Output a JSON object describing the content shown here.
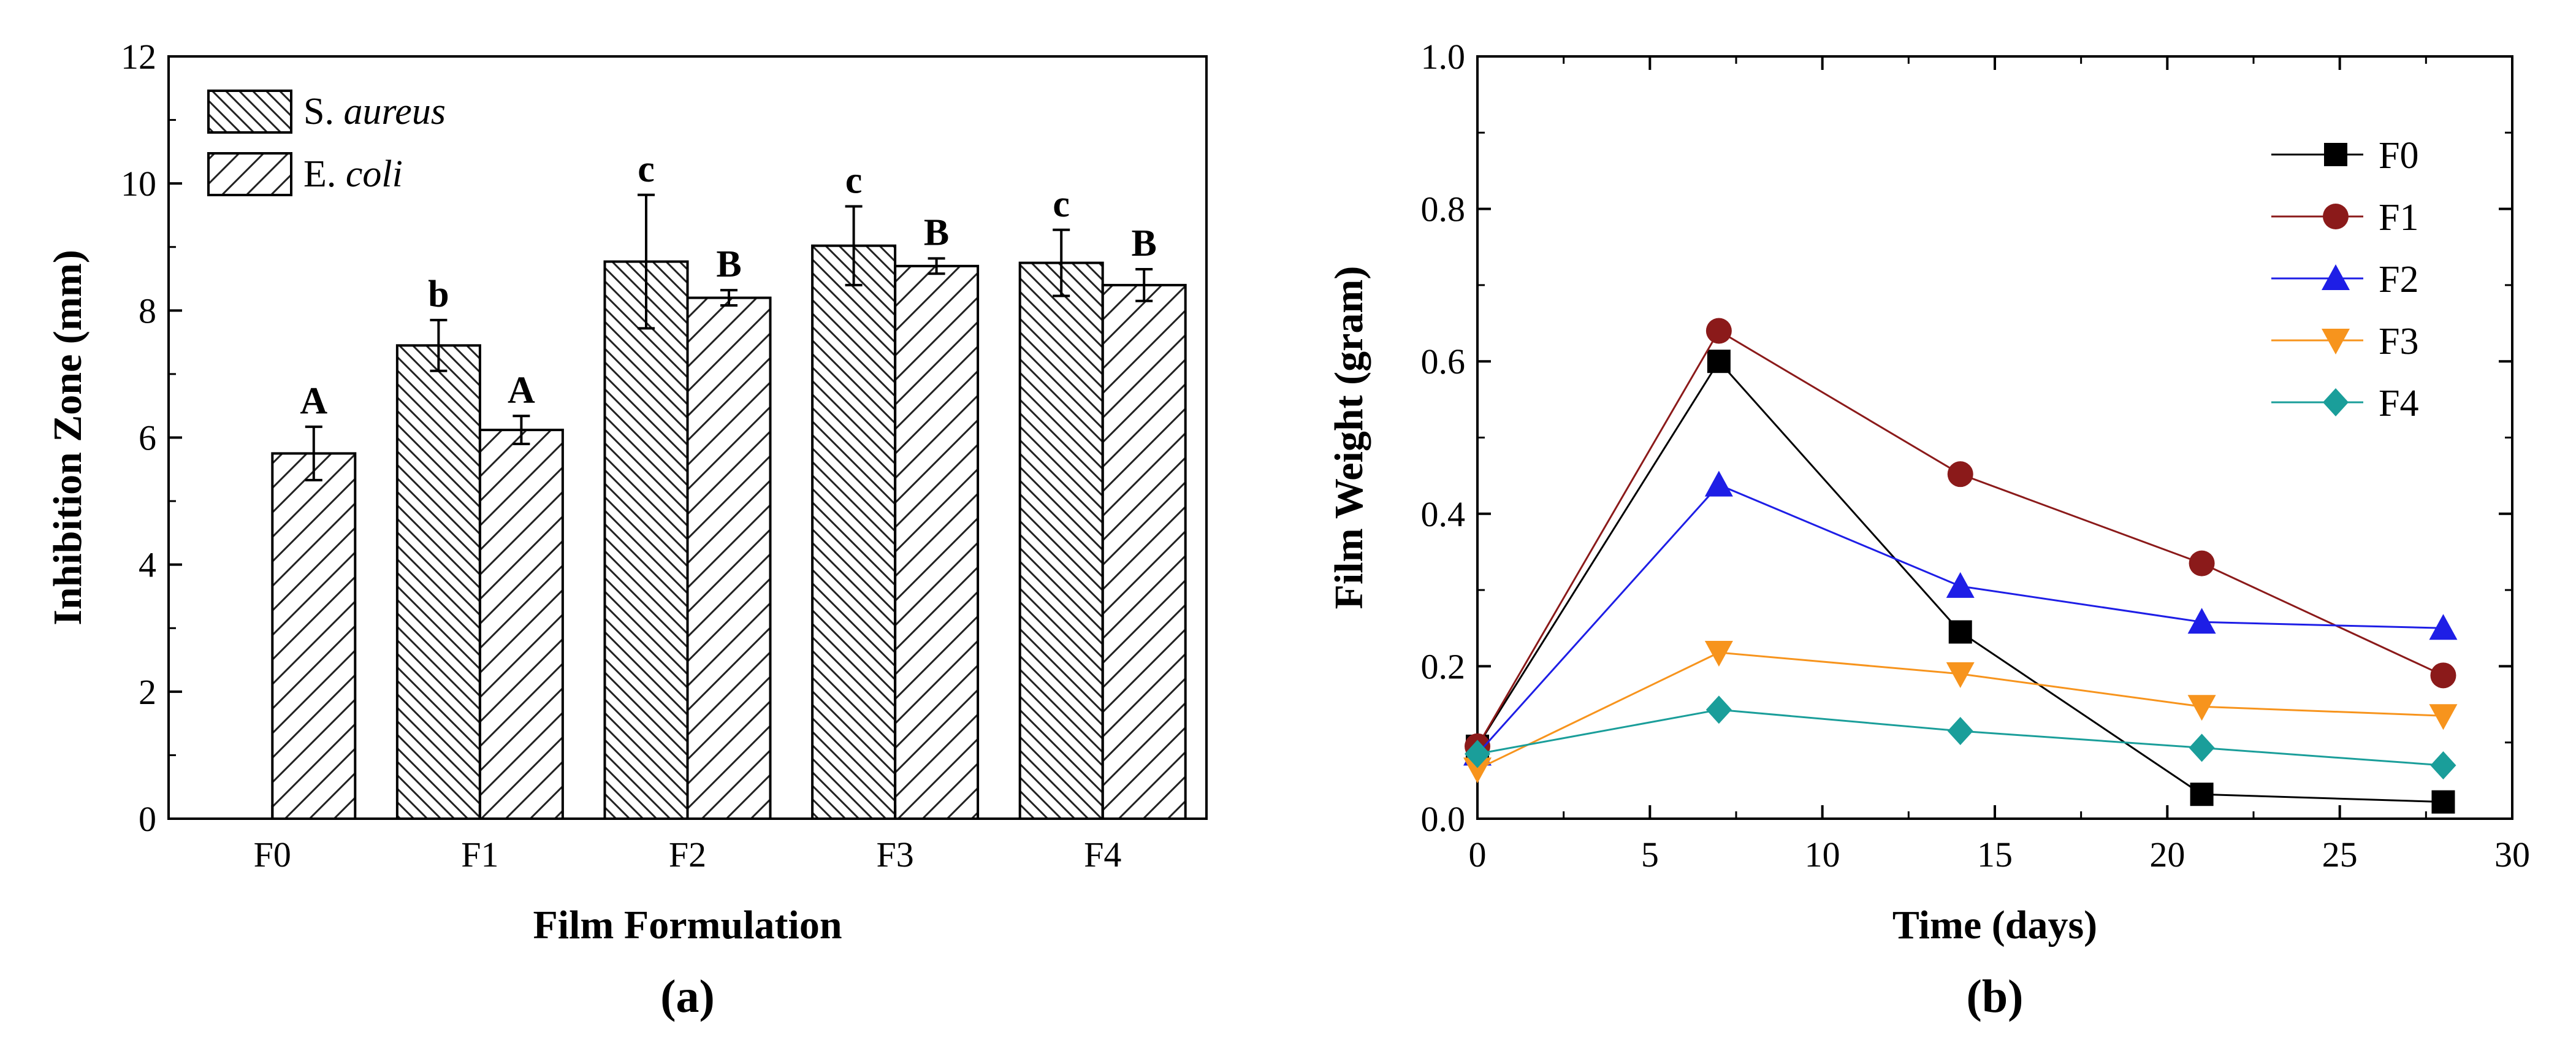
{
  "chart_data": [
    {
      "type": "bar",
      "panel_label": "(a)",
      "xlabel": "Film Formulation",
      "ylabel": "Inhibition Zone (mm)",
      "ylim": [
        0,
        12
      ],
      "yticks": [
        0,
        2,
        4,
        6,
        8,
        10,
        12
      ],
      "categories": [
        "F0",
        "F1",
        "F2",
        "F3",
        "F4"
      ],
      "series": [
        {
          "name": [
            "S. ",
            "aureus"
          ],
          "values": [
            null,
            7.45,
            8.77,
            9.02,
            8.75
          ],
          "errors": [
            null,
            0.4,
            1.05,
            0.62,
            0.52
          ],
          "letters": [
            null,
            "b",
            "c",
            "c",
            "c"
          ],
          "hatch": "backslash"
        },
        {
          "name": [
            "E. ",
            "coli"
          ],
          "values": [
            5.75,
            6.12,
            8.2,
            8.7,
            8.4
          ],
          "errors": [
            0.42,
            0.22,
            0.12,
            0.12,
            0.25
          ],
          "letters": [
            "A",
            "A",
            "B",
            "B",
            "B"
          ],
          "hatch": "slash"
        }
      ],
      "legend": "top-left"
    },
    {
      "type": "line",
      "panel_label": "(b)",
      "xlabel": "Time (days)",
      "ylabel": "Film Weight (gram)",
      "xlim": [
        0,
        30
      ],
      "ylim": [
        0,
        1.0
      ],
      "xticks": [
        0,
        5,
        10,
        15,
        20,
        25,
        30
      ],
      "yticks": [
        "0.0",
        "0.2",
        "0.4",
        "0.6",
        "0.8",
        "1.0"
      ],
      "x": [
        0,
        7,
        14,
        21,
        28
      ],
      "series": [
        {
          "name": "F0",
          "values": [
            0.095,
            0.6,
            0.245,
            0.032,
            0.022
          ],
          "color": "#000000",
          "marker": "square"
        },
        {
          "name": "F1",
          "values": [
            0.095,
            0.64,
            0.452,
            0.335,
            0.188
          ],
          "color": "#8b1a1a",
          "marker": "circle"
        },
        {
          "name": "F2",
          "values": [
            0.085,
            0.438,
            0.305,
            0.258,
            0.25
          ],
          "color": "#1e1ee6",
          "marker": "triangle-up"
        },
        {
          "name": "F3",
          "values": [
            0.065,
            0.218,
            0.19,
            0.147,
            0.135
          ],
          "color": "#f7941d",
          "marker": "triangle-down"
        },
        {
          "name": "F4",
          "values": [
            0.085,
            0.143,
            0.115,
            0.093,
            0.07
          ],
          "color": "#1a9e9a",
          "marker": "diamond"
        }
      ],
      "legend": "top-right"
    }
  ]
}
